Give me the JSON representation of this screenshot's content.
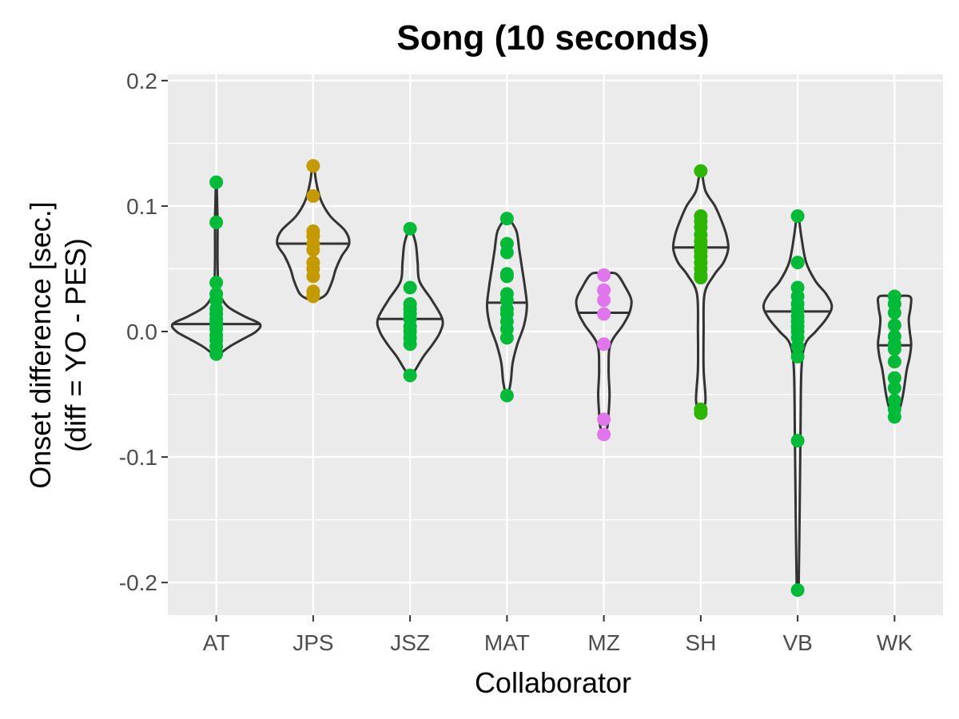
{
  "chart_data": {
    "type": "violin",
    "title": "Song (10 seconds)",
    "xlabel": "Collaborator",
    "ylabel_lines": [
      "Onset difference [sec.]",
      "(diff = YO - PES)"
    ],
    "categories": [
      "AT",
      "JPS",
      "JSZ",
      "MAT",
      "MZ",
      "SH",
      "VB",
      "WK"
    ],
    "yticks": [
      0.2,
      0.1,
      0.0,
      -0.1,
      -0.2
    ],
    "ytick_labels": [
      "0.2",
      "0.1",
      "0.0",
      "-0.1",
      "-0.2"
    ],
    "ylim": [
      -0.226,
      0.205
    ],
    "grid": true,
    "panel_background": "#ebebeb",
    "violin_stroke": "#333333",
    "series": [
      {
        "category": "AT",
        "color": "#00ba38",
        "median": 0.006,
        "points": [
          0.119,
          0.087,
          0.039,
          0.03,
          0.025,
          0.018,
          0.014,
          0.01,
          0.007,
          0.005,
          0.002,
          -0.003,
          -0.007,
          -0.012,
          -0.018
        ],
        "profile": [
          [
            0.119,
            0.004
          ],
          [
            0.1,
            0.01
          ],
          [
            0.085,
            0.014
          ],
          [
            0.06,
            0.013
          ],
          [
            0.04,
            0.018
          ],
          [
            0.03,
            0.035
          ],
          [
            0.02,
            0.12
          ],
          [
            0.012,
            0.3
          ],
          [
            0.006,
            0.46
          ],
          [
            0.0,
            0.42
          ],
          [
            -0.006,
            0.28
          ],
          [
            -0.012,
            0.14
          ],
          [
            -0.018,
            0.03
          ]
        ]
      },
      {
        "category": "JPS",
        "color": "#c49a00",
        "median": 0.07,
        "points": [
          0.132,
          0.108,
          0.08,
          0.076,
          0.07,
          0.065,
          0.055,
          0.05,
          0.044,
          0.032,
          0.028
        ],
        "profile": [
          [
            0.132,
            0.01
          ],
          [
            0.12,
            0.03
          ],
          [
            0.105,
            0.08
          ],
          [
            0.092,
            0.18
          ],
          [
            0.08,
            0.34
          ],
          [
            0.07,
            0.38
          ],
          [
            0.06,
            0.3
          ],
          [
            0.05,
            0.24
          ],
          [
            0.04,
            0.2
          ],
          [
            0.03,
            0.14
          ],
          [
            0.026,
            0.06
          ]
        ]
      },
      {
        "category": "JSZ",
        "color": "#00ba38",
        "median": 0.01,
        "points": [
          0.082,
          0.035,
          0.022,
          0.018,
          0.014,
          0.01,
          0.004,
          0.0,
          -0.005,
          -0.01,
          -0.035
        ],
        "profile": [
          [
            0.082,
            0.01
          ],
          [
            0.07,
            0.06
          ],
          [
            0.055,
            0.08
          ],
          [
            0.04,
            0.1
          ],
          [
            0.025,
            0.23
          ],
          [
            0.01,
            0.34
          ],
          [
            0.0,
            0.32
          ],
          [
            -0.01,
            0.24
          ],
          [
            -0.02,
            0.14
          ],
          [
            -0.03,
            0.06
          ],
          [
            -0.035,
            0.015
          ]
        ]
      },
      {
        "category": "MAT",
        "color": "#00ba38",
        "median": 0.023,
        "points": [
          0.09,
          0.07,
          0.063,
          0.046,
          0.044,
          0.03,
          0.025,
          0.018,
          0.014,
          0.008,
          0.002,
          -0.005,
          -0.051
        ],
        "profile": [
          [
            0.09,
            0.02
          ],
          [
            0.08,
            0.1
          ],
          [
            0.065,
            0.13
          ],
          [
            0.05,
            0.16
          ],
          [
            0.035,
            0.19
          ],
          [
            0.02,
            0.21
          ],
          [
            0.005,
            0.18
          ],
          [
            -0.01,
            0.11
          ],
          [
            -0.025,
            0.06
          ],
          [
            -0.04,
            0.04
          ],
          [
            -0.051,
            0.01
          ]
        ]
      },
      {
        "category": "MZ",
        "color": "#e076ec",
        "median": 0.015,
        "points": [
          0.045,
          0.033,
          0.025,
          0.014,
          -0.01,
          -0.07,
          -0.082
        ],
        "profile": [
          [
            0.046,
            0.13
          ],
          [
            0.035,
            0.23
          ],
          [
            0.025,
            0.29
          ],
          [
            0.015,
            0.27
          ],
          [
            0.005,
            0.2
          ],
          [
            -0.01,
            0.07
          ],
          [
            -0.03,
            0.05
          ],
          [
            -0.05,
            0.06
          ],
          [
            -0.065,
            0.05
          ],
          [
            -0.075,
            0.04
          ],
          [
            -0.082,
            0.01
          ]
        ]
      },
      {
        "category": "SH",
        "color": "#2db501",
        "median": 0.067,
        "points": [
          0.128,
          0.092,
          0.088,
          0.083,
          0.077,
          0.072,
          0.068,
          0.064,
          0.06,
          0.055,
          0.05,
          0.045,
          0.043,
          -0.062,
          -0.065
        ],
        "profile": [
          [
            0.128,
            0.01
          ],
          [
            0.112,
            0.05
          ],
          [
            0.1,
            0.15
          ],
          [
            0.088,
            0.22
          ],
          [
            0.077,
            0.27
          ],
          [
            0.066,
            0.29
          ],
          [
            0.055,
            0.24
          ],
          [
            0.045,
            0.14
          ],
          [
            0.03,
            0.04
          ],
          [
            0.0,
            0.03
          ],
          [
            -0.03,
            0.03
          ],
          [
            -0.055,
            0.05
          ],
          [
            -0.065,
            0.01
          ]
        ]
      },
      {
        "category": "VB",
        "color": "#00ba38",
        "median": 0.016,
        "points": [
          0.092,
          0.055,
          0.035,
          0.028,
          0.022,
          0.017,
          0.012,
          0.008,
          0.004,
          0.0,
          -0.005,
          -0.012,
          -0.02,
          -0.087,
          -0.206
        ],
        "profile": [
          [
            0.092,
            0.01
          ],
          [
            0.075,
            0.04
          ],
          [
            0.055,
            0.09
          ],
          [
            0.04,
            0.19
          ],
          [
            0.03,
            0.3
          ],
          [
            0.02,
            0.36
          ],
          [
            0.01,
            0.3
          ],
          [
            0.0,
            0.19
          ],
          [
            -0.01,
            0.08
          ],
          [
            -0.03,
            0.04
          ],
          [
            -0.08,
            0.03
          ],
          [
            -0.15,
            0.02
          ],
          [
            -0.206,
            0.01
          ]
        ]
      },
      {
        "category": "WK",
        "color": "#00ba38",
        "median": -0.011,
        "points": [
          0.028,
          0.022,
          0.015,
          0.005,
          -0.004,
          -0.01,
          -0.014,
          -0.024,
          -0.037,
          -0.045,
          -0.055,
          -0.062,
          -0.068
        ],
        "profile": [
          [
            0.028,
            0.16
          ],
          [
            0.02,
            0.17
          ],
          [
            0.01,
            0.15
          ],
          [
            0.0,
            0.16
          ],
          [
            -0.01,
            0.175
          ],
          [
            -0.02,
            0.16
          ],
          [
            -0.03,
            0.13
          ],
          [
            -0.04,
            0.11
          ],
          [
            -0.05,
            0.09
          ],
          [
            -0.06,
            0.06
          ],
          [
            -0.068,
            0.02
          ]
        ]
      }
    ]
  }
}
